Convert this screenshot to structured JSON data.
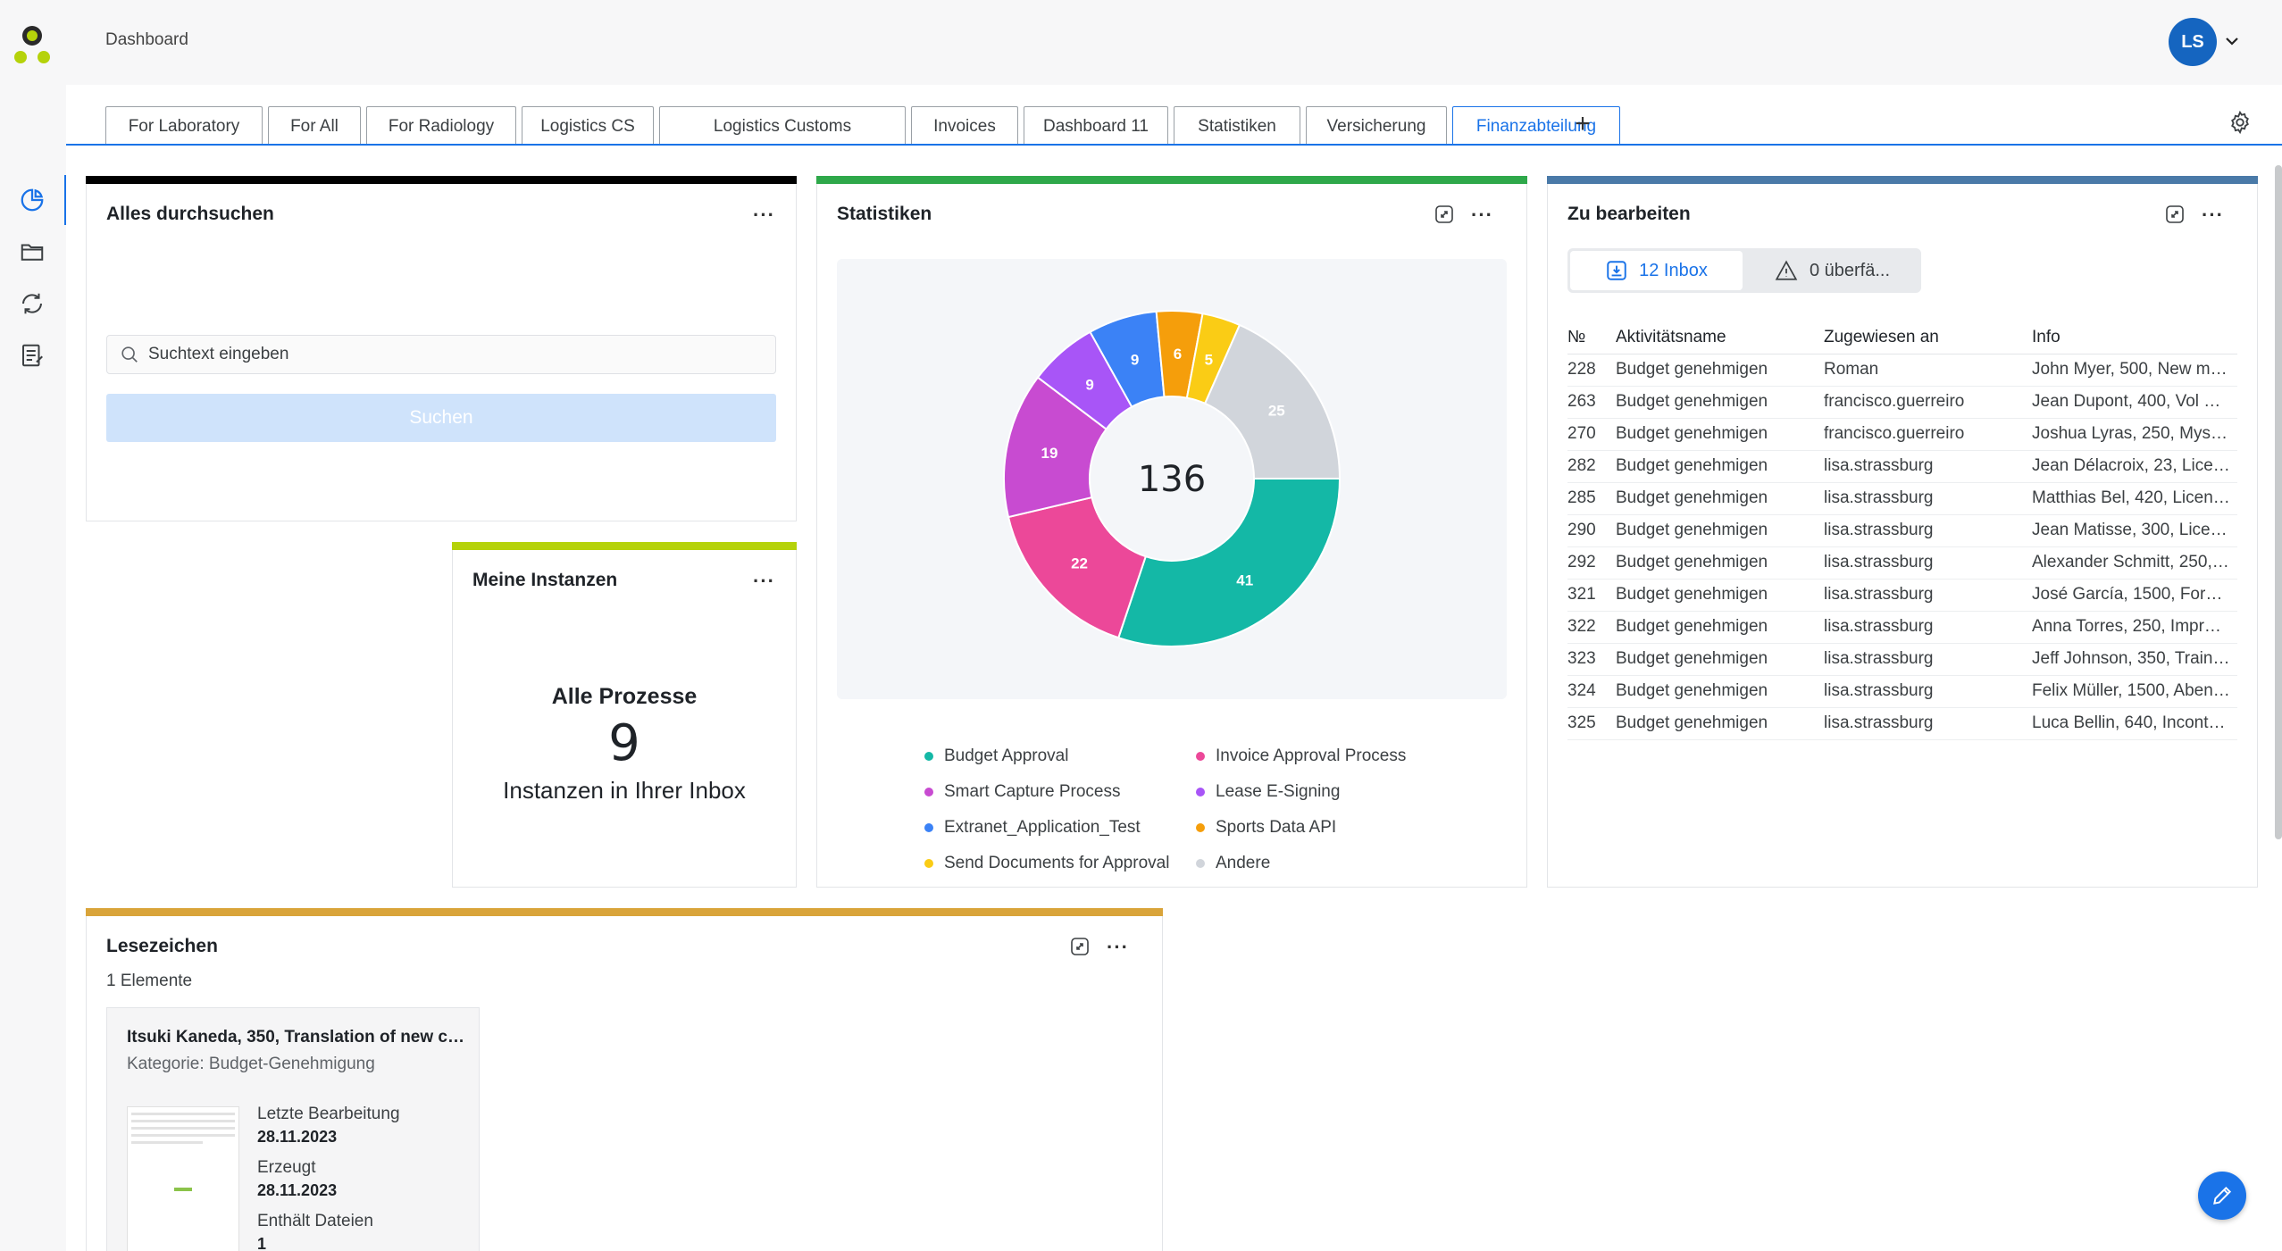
{
  "header": {
    "breadcrumb": "Dashboard",
    "avatar_initials": "LS"
  },
  "tabs": [
    {
      "label": "For Laboratory"
    },
    {
      "label": "For All"
    },
    {
      "label": "For Radiology"
    },
    {
      "label": "Logistics CS"
    },
    {
      "label": "Logistics Customs"
    },
    {
      "label": "Invoices"
    },
    {
      "label": "Dashboard 11"
    },
    {
      "label": "Statistiken"
    },
    {
      "label": "Versicherung"
    },
    {
      "label": "Finanzabteilung",
      "active": true
    }
  ],
  "tab_add_label": "+",
  "search_widget": {
    "title": "Alles durchsuchen",
    "placeholder": "Suchtext eingeben",
    "button": "Suchen",
    "accent": "#000000"
  },
  "instances_widget": {
    "title": "Meine Instanzen",
    "heading": "Alle Prozesse",
    "count": "9",
    "subtitle": "Instanzen in Ihrer Inbox",
    "accent": "#b5d20a"
  },
  "stats_widget": {
    "title": "Statistiken",
    "accent": "#2ea84a",
    "total": "136",
    "legend": [
      {
        "label": "Budget Approval",
        "color": "#14b8a6"
      },
      {
        "label": "Invoice Approval Process",
        "color": "#ec4899"
      },
      {
        "label": "Smart Capture Process",
        "color": "#c84bd1"
      },
      {
        "label": "Lease E-Signing",
        "color": "#a855f7"
      },
      {
        "label": "Extranet_Application_Test",
        "color": "#3b82f6"
      },
      {
        "label": "Sports Data API",
        "color": "#f59e0b"
      },
      {
        "label": "Send Documents for Approval",
        "color": "#facc15"
      },
      {
        "label": "Andere",
        "color": "#d1d5db"
      }
    ]
  },
  "chart_data": {
    "type": "pie",
    "categories": [
      "Budget Approval",
      "Invoice Approval Process",
      "Smart Capture Process",
      "Lease E-Signing",
      "Extranet_Application_Test",
      "Sports Data API",
      "Send Documents for Approval",
      "Andere"
    ],
    "values": [
      41,
      22,
      19,
      9,
      9,
      6,
      5,
      25
    ],
    "colors": [
      "#14b8a6",
      "#ec4899",
      "#c84bd1",
      "#a855f7",
      "#3b82f6",
      "#f59e0b",
      "#facc15",
      "#d1d5db"
    ],
    "center_label": "136",
    "legend_position": "bottom"
  },
  "todo_widget": {
    "title": "Zu bearbeiten",
    "accent": "#4a7aa8",
    "inbox_label": "12 Inbox",
    "overdue_label": "0 überfä...",
    "columns": [
      "№",
      "Aktivitätsname",
      "Zugewiesen an",
      "Info"
    ],
    "rows": [
      [
        "228",
        "Budget genehmigen",
        "Roman",
        "John Myer, 500, New mon..."
      ],
      [
        "263",
        "Budget genehmigen",
        "francisco.guerreiro",
        "Jean Dupont, 400, Vol Ge..."
      ],
      [
        "270",
        "Budget genehmigen",
        "francisco.guerreiro",
        "Joshua Lyras, 250, Myster..."
      ],
      [
        "282",
        "Budget genehmigen",
        "lisa.strassburg",
        "Jean Délacroix, 23, Licenc..."
      ],
      [
        "285",
        "Budget genehmigen",
        "lisa.strassburg",
        "Matthias Bel, 420, Licenc..."
      ],
      [
        "290",
        "Budget genehmigen",
        "lisa.strassburg",
        "Jean Matisse, 300, Licenc..."
      ],
      [
        "292",
        "Budget genehmigen",
        "lisa.strassburg",
        "Alexander Schmitt, 250, N..."
      ],
      [
        "321",
        "Budget genehmigen",
        "lisa.strassburg",
        "José García, 1500, Formac..."
      ],
      [
        "322",
        "Budget genehmigen",
        "lisa.strassburg",
        "Anna Torres, 250, Impresi..."
      ],
      [
        "323",
        "Budget genehmigen",
        "lisa.strassburg",
        "Jeff Johnson, 350, Train ti..."
      ],
      [
        "324",
        "Budget genehmigen",
        "lisa.strassburg",
        "Felix Müller, 1500, Abend..."
      ],
      [
        "325",
        "Budget genehmigen",
        "lisa.strassburg",
        "Luca Bellin, 640, Incontro..."
      ]
    ]
  },
  "bookmarks_widget": {
    "title": "Lesezeichen",
    "accent": "#d9a43a",
    "count_label": "1 Elemente",
    "card": {
      "title": "Itsuki Kaneda, 350, Translation of new cli...",
      "category": "Kategorie: Budget-Genehmigung",
      "last_edit_label": "Letzte Bearbeitung",
      "last_edit_value": "28.11.2023",
      "created_label": "Erzeugt",
      "created_value": "28.11.2023",
      "files_label": "Enthält Dateien",
      "files_value": "1"
    }
  }
}
